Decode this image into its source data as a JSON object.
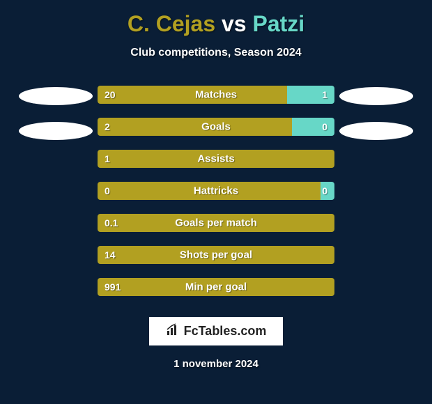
{
  "background_color": "#0a1e36",
  "title": {
    "player1": "C. Cejas",
    "vs": " vs ",
    "player2": "Patzi",
    "player1_color": "#b2a021",
    "vs_color": "#ffffff",
    "player2_color": "#67d7c7"
  },
  "subtitle": "Club competitions, Season 2024",
  "colors": {
    "player1_bar": "#b2a021",
    "player2_bar": "#67d7c7",
    "text": "#ffffff"
  },
  "bars": [
    {
      "label": "Matches",
      "left_val": "20",
      "right_val": "1",
      "left_pct": 80,
      "right_pct": 20
    },
    {
      "label": "Goals",
      "left_val": "2",
      "right_val": "0",
      "left_pct": 82,
      "right_pct": 18
    },
    {
      "label": "Assists",
      "left_val": "1",
      "right_val": "",
      "left_pct": 100,
      "right_pct": 0
    },
    {
      "label": "Hattricks",
      "left_val": "0",
      "right_val": "0",
      "left_pct": 94,
      "right_pct": 6
    },
    {
      "label": "Goals per match",
      "left_val": "0.1",
      "right_val": "",
      "left_pct": 100,
      "right_pct": 0
    },
    {
      "label": "Shots per goal",
      "left_val": "14",
      "right_val": "",
      "left_pct": 100,
      "right_pct": 0
    },
    {
      "label": "Min per goal",
      "left_val": "991",
      "right_val": "",
      "left_pct": 100,
      "right_pct": 0
    }
  ],
  "left_ellipses": 2,
  "right_ellipses": 2,
  "attribution": "FcTables.com",
  "date": "1 november 2024"
}
